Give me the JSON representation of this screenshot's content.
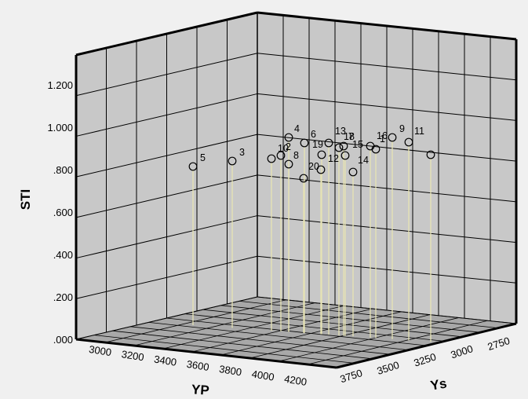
{
  "chart_data": {
    "type": "scatter3d",
    "title": "",
    "zlabel": "STI",
    "xlabel": "YP",
    "ylabel": "Ys",
    "z_ticks": [
      ".000",
      ".200",
      ".400",
      ".600",
      ".800",
      "1.000",
      "1.200"
    ],
    "x_ticks": [
      "3000",
      "3200",
      "3400",
      "3600",
      "3800",
      "4000",
      "4200"
    ],
    "y_ticks": [
      "3750",
      "3500",
      "3250",
      "3000",
      "2750"
    ],
    "grid": true,
    "drop_lines": true,
    "colors": {
      "background": "#f0f0f0",
      "wall": "#c8c8c8",
      "floor": "#a8a8a8",
      "grid": "#000000",
      "drop_line": "#e6e3b4",
      "marker_stroke": "#000000"
    },
    "points": [
      {
        "label": "5",
        "sti": 0.805
      },
      {
        "label": "3",
        "sti": 0.829
      },
      {
        "label": "10",
        "sti": 0.841
      },
      {
        "label": "2",
        "sti": 0.853
      },
      {
        "label": "4",
        "sti": 0.937
      },
      {
        "label": "8",
        "sti": 0.814
      },
      {
        "label": "6",
        "sti": 0.912
      },
      {
        "label": "20",
        "sti": 0.757
      },
      {
        "label": "19",
        "sti": 0.794
      },
      {
        "label": "",
        "sti": 0.858
      },
      {
        "label": "12",
        "sti": 0.919
      },
      {
        "label": "13",
        "sti": 0.894
      },
      {
        "label": "18",
        "sti": 0.899
      },
      {
        "label": "7",
        "sti": 0.857
      },
      {
        "label": "14",
        "sti": 0.78
      },
      {
        "label": "15",
        "sti": 0.9
      },
      {
        "label": "1",
        "sti": 0.883
      },
      {
        "label": "16",
        "sti": 0.947
      },
      {
        "label": "9",
        "sti": 0.921
      },
      {
        "label": "11",
        "sti": 0.858
      }
    ]
  }
}
